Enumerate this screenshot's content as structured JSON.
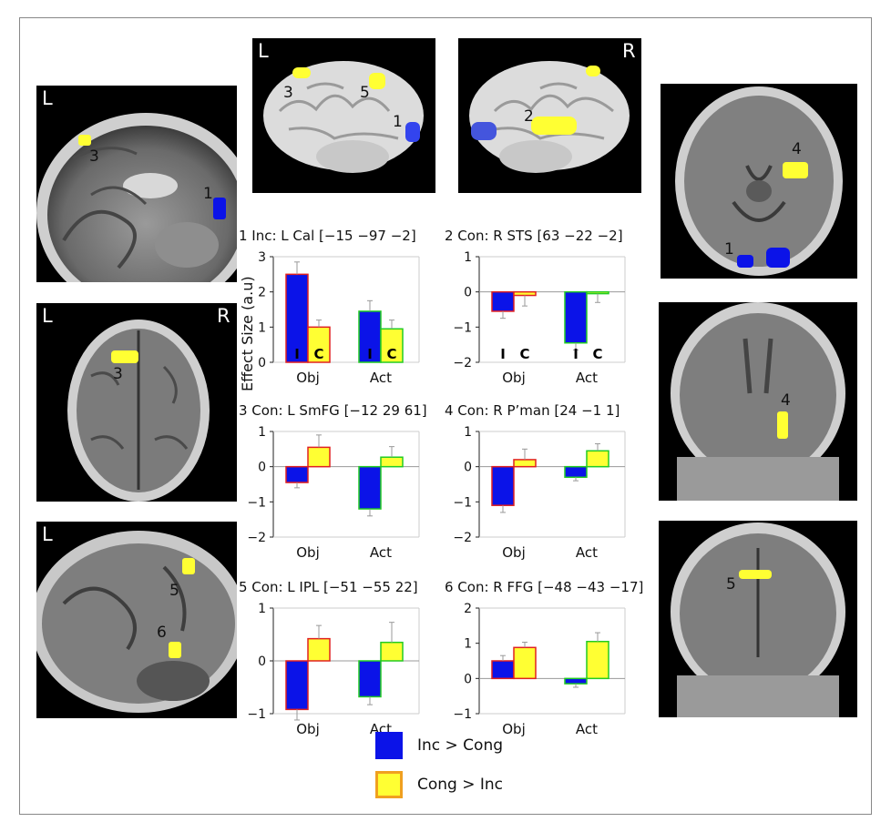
{
  "panels": {
    "sag_left": {
      "side_l": "L",
      "labels": [
        "3",
        "1"
      ]
    },
    "axial_left": {
      "side_l": "L",
      "side_r": "R",
      "labels": [
        "3"
      ]
    },
    "sag_left_lower": {
      "side_l": "L",
      "labels": [
        "5",
        "6"
      ]
    },
    "render_left": {
      "side_l": "L",
      "labels": [
        "3",
        "5",
        "1"
      ]
    },
    "render_right": {
      "side_r": "R",
      "labels": [
        "2"
      ]
    },
    "axial_right": {
      "labels": [
        "4",
        "1"
      ]
    },
    "coronal_right": {
      "labels": [
        "4"
      ]
    },
    "coronal_right_lower": {
      "labels": [
        "5"
      ]
    }
  },
  "colors": {
    "inc": "#0b13e8",
    "cong": "#ffff33",
    "cong_border": "#f0a020",
    "inc_border_red": "#e02020",
    "inc_border_green": "#22cc22"
  },
  "y_axis_label": "Effect Size (a.u)",
  "legend": [
    {
      "label": "Inc > Cong",
      "color": "#0b13e8"
    },
    {
      "label": "Cong > Inc",
      "color": "#ffff33"
    }
  ],
  "chart_data": [
    {
      "type": "bar",
      "title": "1 Inc: L Cal [−15 −97 −2]",
      "categories": [
        "Obj",
        "Act"
      ],
      "ylim": [
        0,
        3
      ],
      "yticks": [
        "0",
        "1",
        "2",
        "3"
      ],
      "series": [
        {
          "values": [
            2.5,
            1.45
          ],
          "err": [
            0.35,
            0.3
          ]
        },
        {
          "values": [
            1.0,
            0.95
          ],
          "err": [
            0.2,
            0.25
          ]
        }
      ],
      "bar_letters": [
        "I",
        "C"
      ]
    },
    {
      "type": "bar",
      "title": "2 Con: R STS [63 −22 −2]",
      "categories": [
        "Obj",
        "Act"
      ],
      "ylim": [
        -2,
        1
      ],
      "yticks": [
        "1",
        "0",
        "−1",
        "−2"
      ],
      "series": [
        {
          "values": [
            -0.55,
            -1.45
          ],
          "err": [
            0.2,
            0.2
          ]
        },
        {
          "values": [
            -0.1,
            -0.05
          ],
          "err": [
            0.3,
            0.25
          ]
        }
      ],
      "bar_letters": [
        "I",
        "C"
      ]
    },
    {
      "type": "bar",
      "title": "3 Con: L SmFG [−12 29 61]",
      "categories": [
        "Obj",
        "Act"
      ],
      "ylim": [
        -2,
        1
      ],
      "yticks": [
        "1",
        "0",
        "−1",
        "−2"
      ],
      "series": [
        {
          "values": [
            -0.45,
            -1.2
          ],
          "err": [
            0.15,
            0.2
          ]
        },
        {
          "values": [
            0.55,
            0.27
          ],
          "err": [
            0.35,
            0.3
          ]
        }
      ]
    },
    {
      "type": "bar",
      "title": "4 Con: R P’man [24 −1 1]",
      "categories": [
        "Obj",
        "Act"
      ],
      "ylim": [
        -2,
        1
      ],
      "yticks": [
        "1",
        "0",
        "−1",
        "−2"
      ],
      "series": [
        {
          "values": [
            -1.1,
            -0.3
          ],
          "err": [
            0.2,
            0.1
          ]
        },
        {
          "values": [
            0.2,
            0.45
          ],
          "err": [
            0.3,
            0.2
          ]
        }
      ]
    },
    {
      "type": "bar",
      "title": "5 Con: L IPL [−51 −55 22]",
      "categories": [
        "Obj",
        "Act"
      ],
      "ylim": [
        -1,
        1
      ],
      "yticks": [
        "1",
        "0",
        "−1"
      ],
      "series": [
        {
          "values": [
            -0.92,
            -0.68
          ],
          "err": [
            0.2,
            0.15
          ]
        },
        {
          "values": [
            0.42,
            0.35
          ],
          "err": [
            0.25,
            0.38
          ]
        }
      ]
    },
    {
      "type": "bar",
      "title": "6 Con: R FFG [−48 −43 −17]",
      "categories": [
        "Obj",
        "Act"
      ],
      "ylim": [
        -1,
        2
      ],
      "yticks": [
        "2",
        "1",
        "0",
        "−1"
      ],
      "series": [
        {
          "values": [
            0.5,
            -0.15
          ],
          "err": [
            0.15,
            0.1
          ]
        },
        {
          "values": [
            0.88,
            1.05
          ],
          "err": [
            0.15,
            0.25
          ]
        }
      ]
    }
  ]
}
